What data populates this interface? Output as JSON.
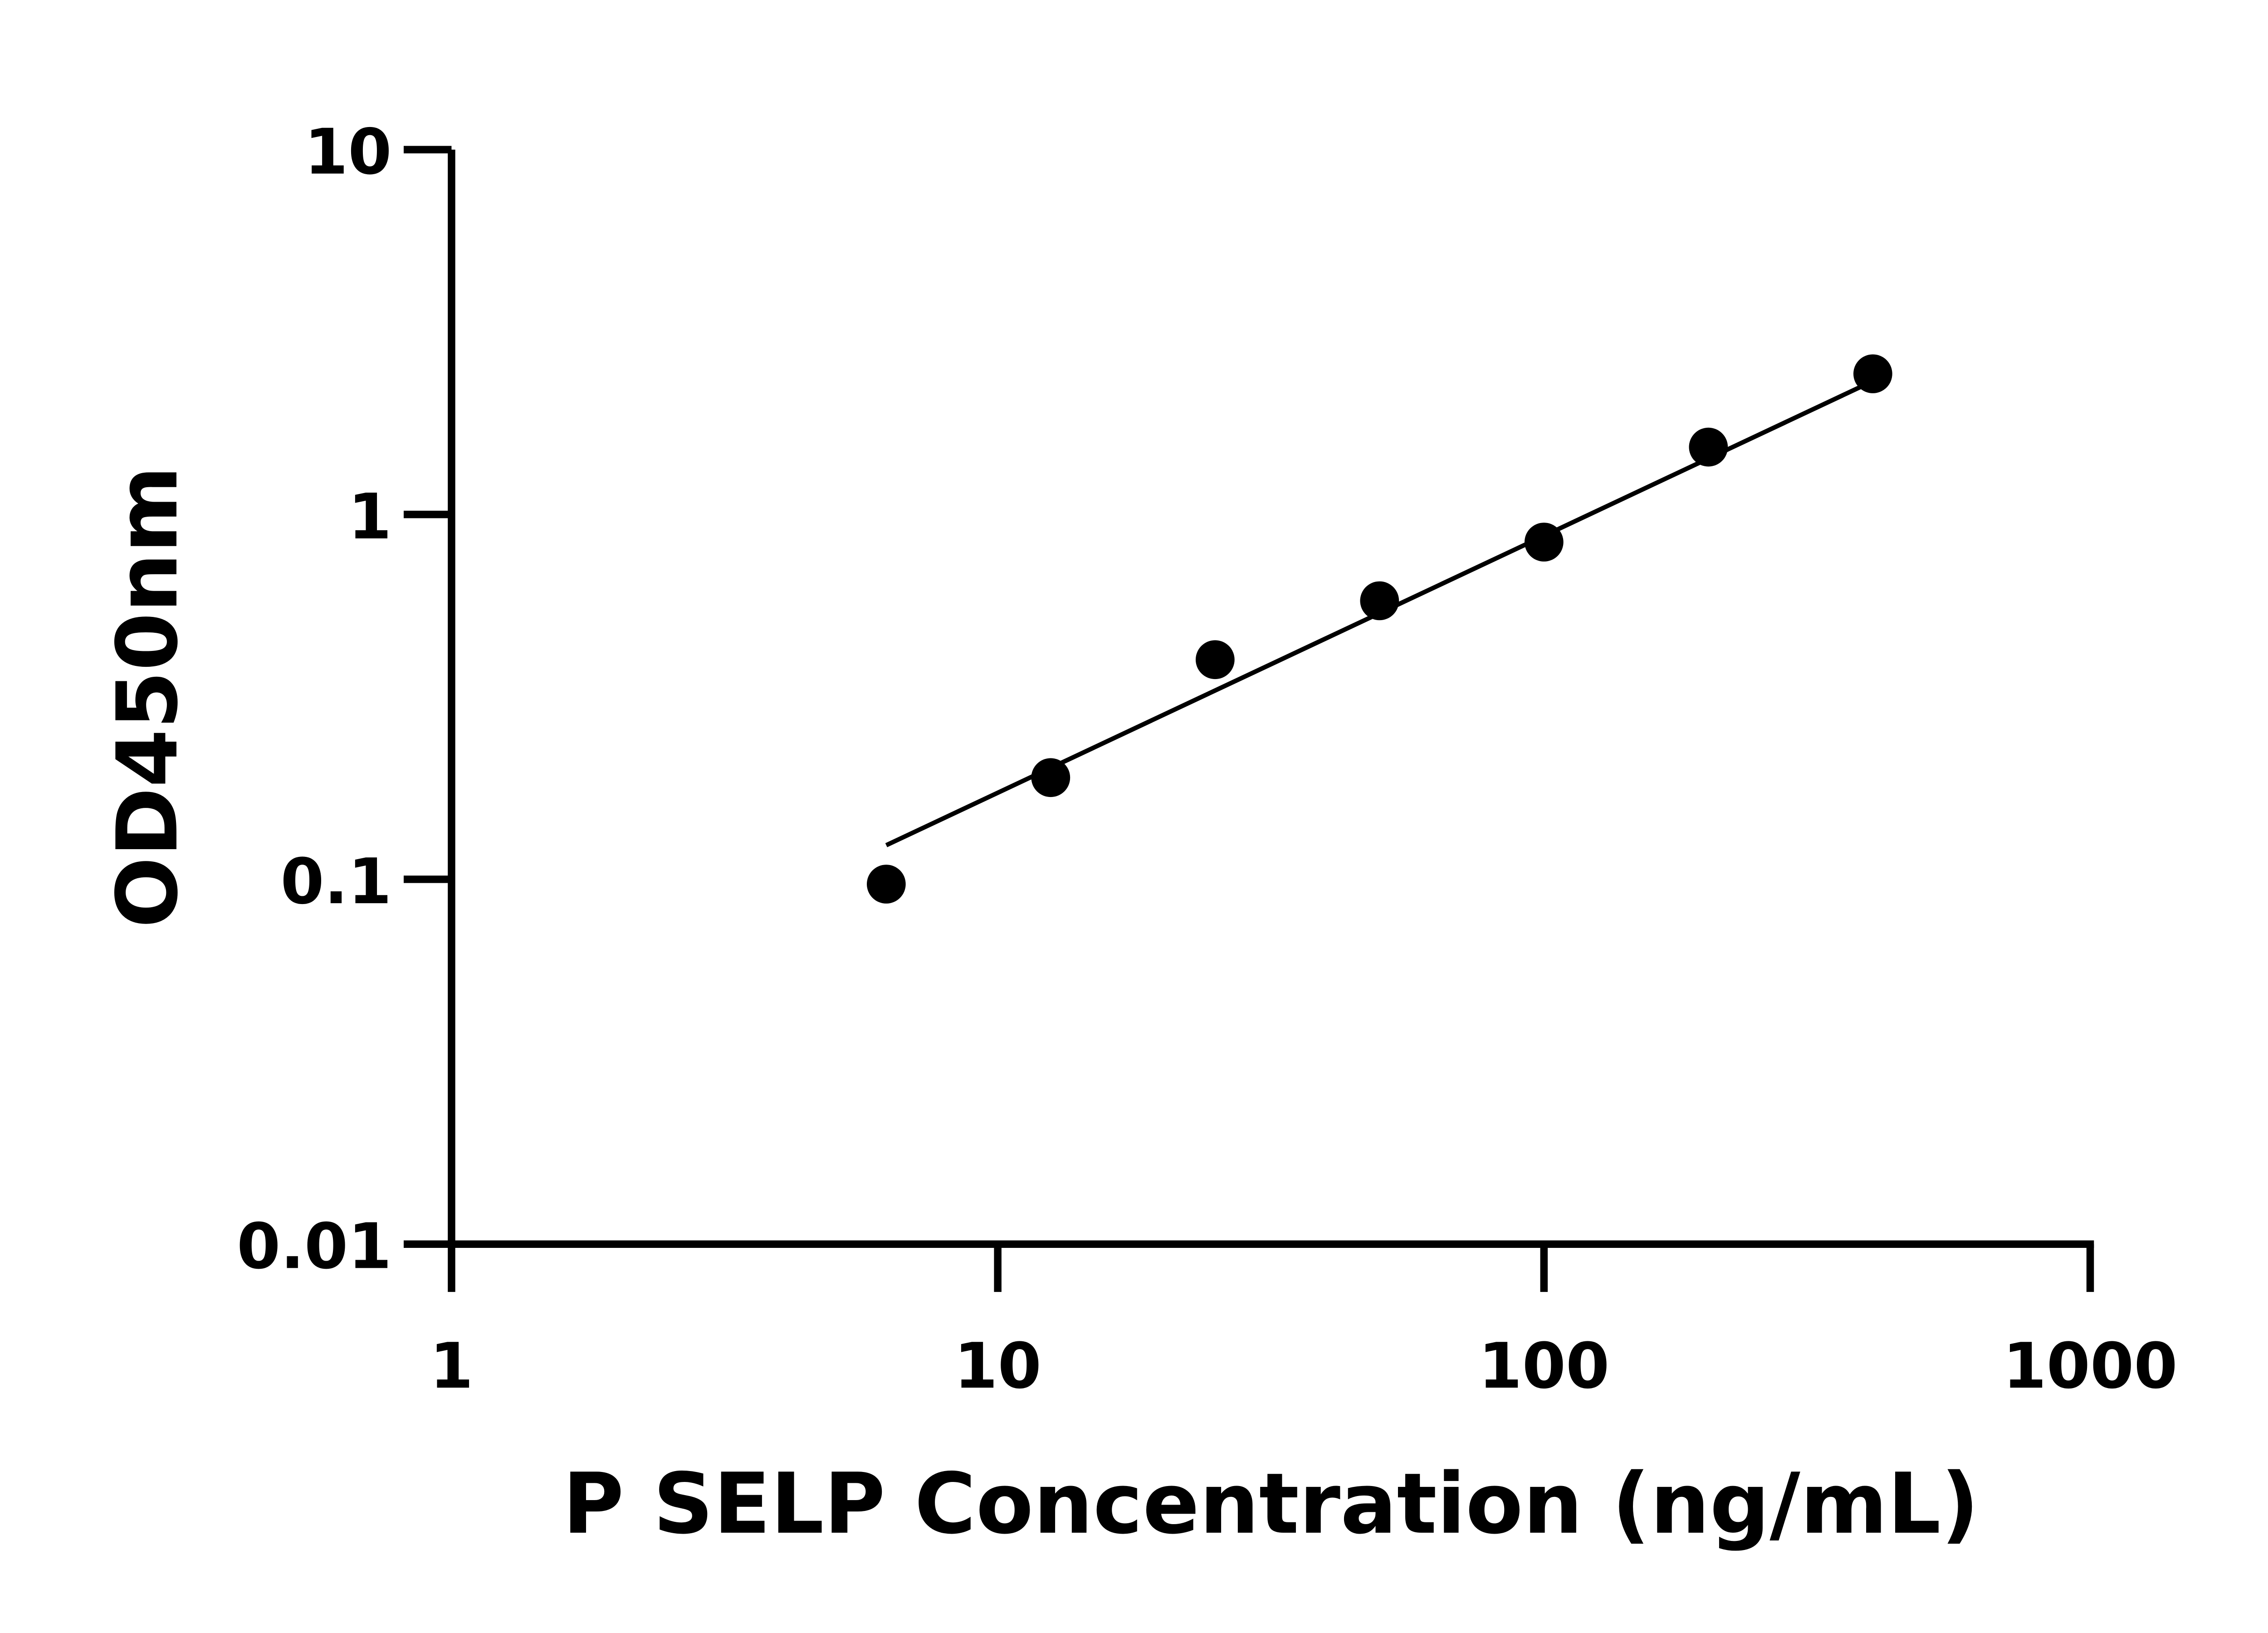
{
  "chart_data": {
    "type": "scatter",
    "title": "",
    "xlabel": "P SELP Concentration (ng/mL)",
    "ylabel": "OD450nm",
    "xscale": "log",
    "yscale": "log",
    "xlim": [
      1,
      1000
    ],
    "ylim": [
      0.01,
      10
    ],
    "xticks": [
      {
        "v": 1,
        "label": "1"
      },
      {
        "v": 10,
        "label": "10"
      },
      {
        "v": 100,
        "label": "100"
      },
      {
        "v": 1000,
        "label": "1000"
      }
    ],
    "yticks": [
      {
        "v": 0.01,
        "label": "0.01"
      },
      {
        "v": 0.1,
        "label": "0.1"
      },
      {
        "v": 1,
        "label": "1"
      },
      {
        "v": 10,
        "label": "10"
      }
    ],
    "grid": false,
    "points": [
      {
        "x": 6.25,
        "y": 0.097
      },
      {
        "x": 12.5,
        "y": 0.19
      },
      {
        "x": 25,
        "y": 0.4
      },
      {
        "x": 50,
        "y": 0.58
      },
      {
        "x": 100,
        "y": 0.84
      },
      {
        "x": 200,
        "y": 1.53
      },
      {
        "x": 400,
        "y": 2.43
      }
    ],
    "fit_line": [
      {
        "x": 6.25,
        "y": 0.124
      },
      {
        "x": 400,
        "y": 2.32
      }
    ],
    "colors": {
      "points": "#000000",
      "line": "#000000",
      "axes": "#000000"
    }
  }
}
